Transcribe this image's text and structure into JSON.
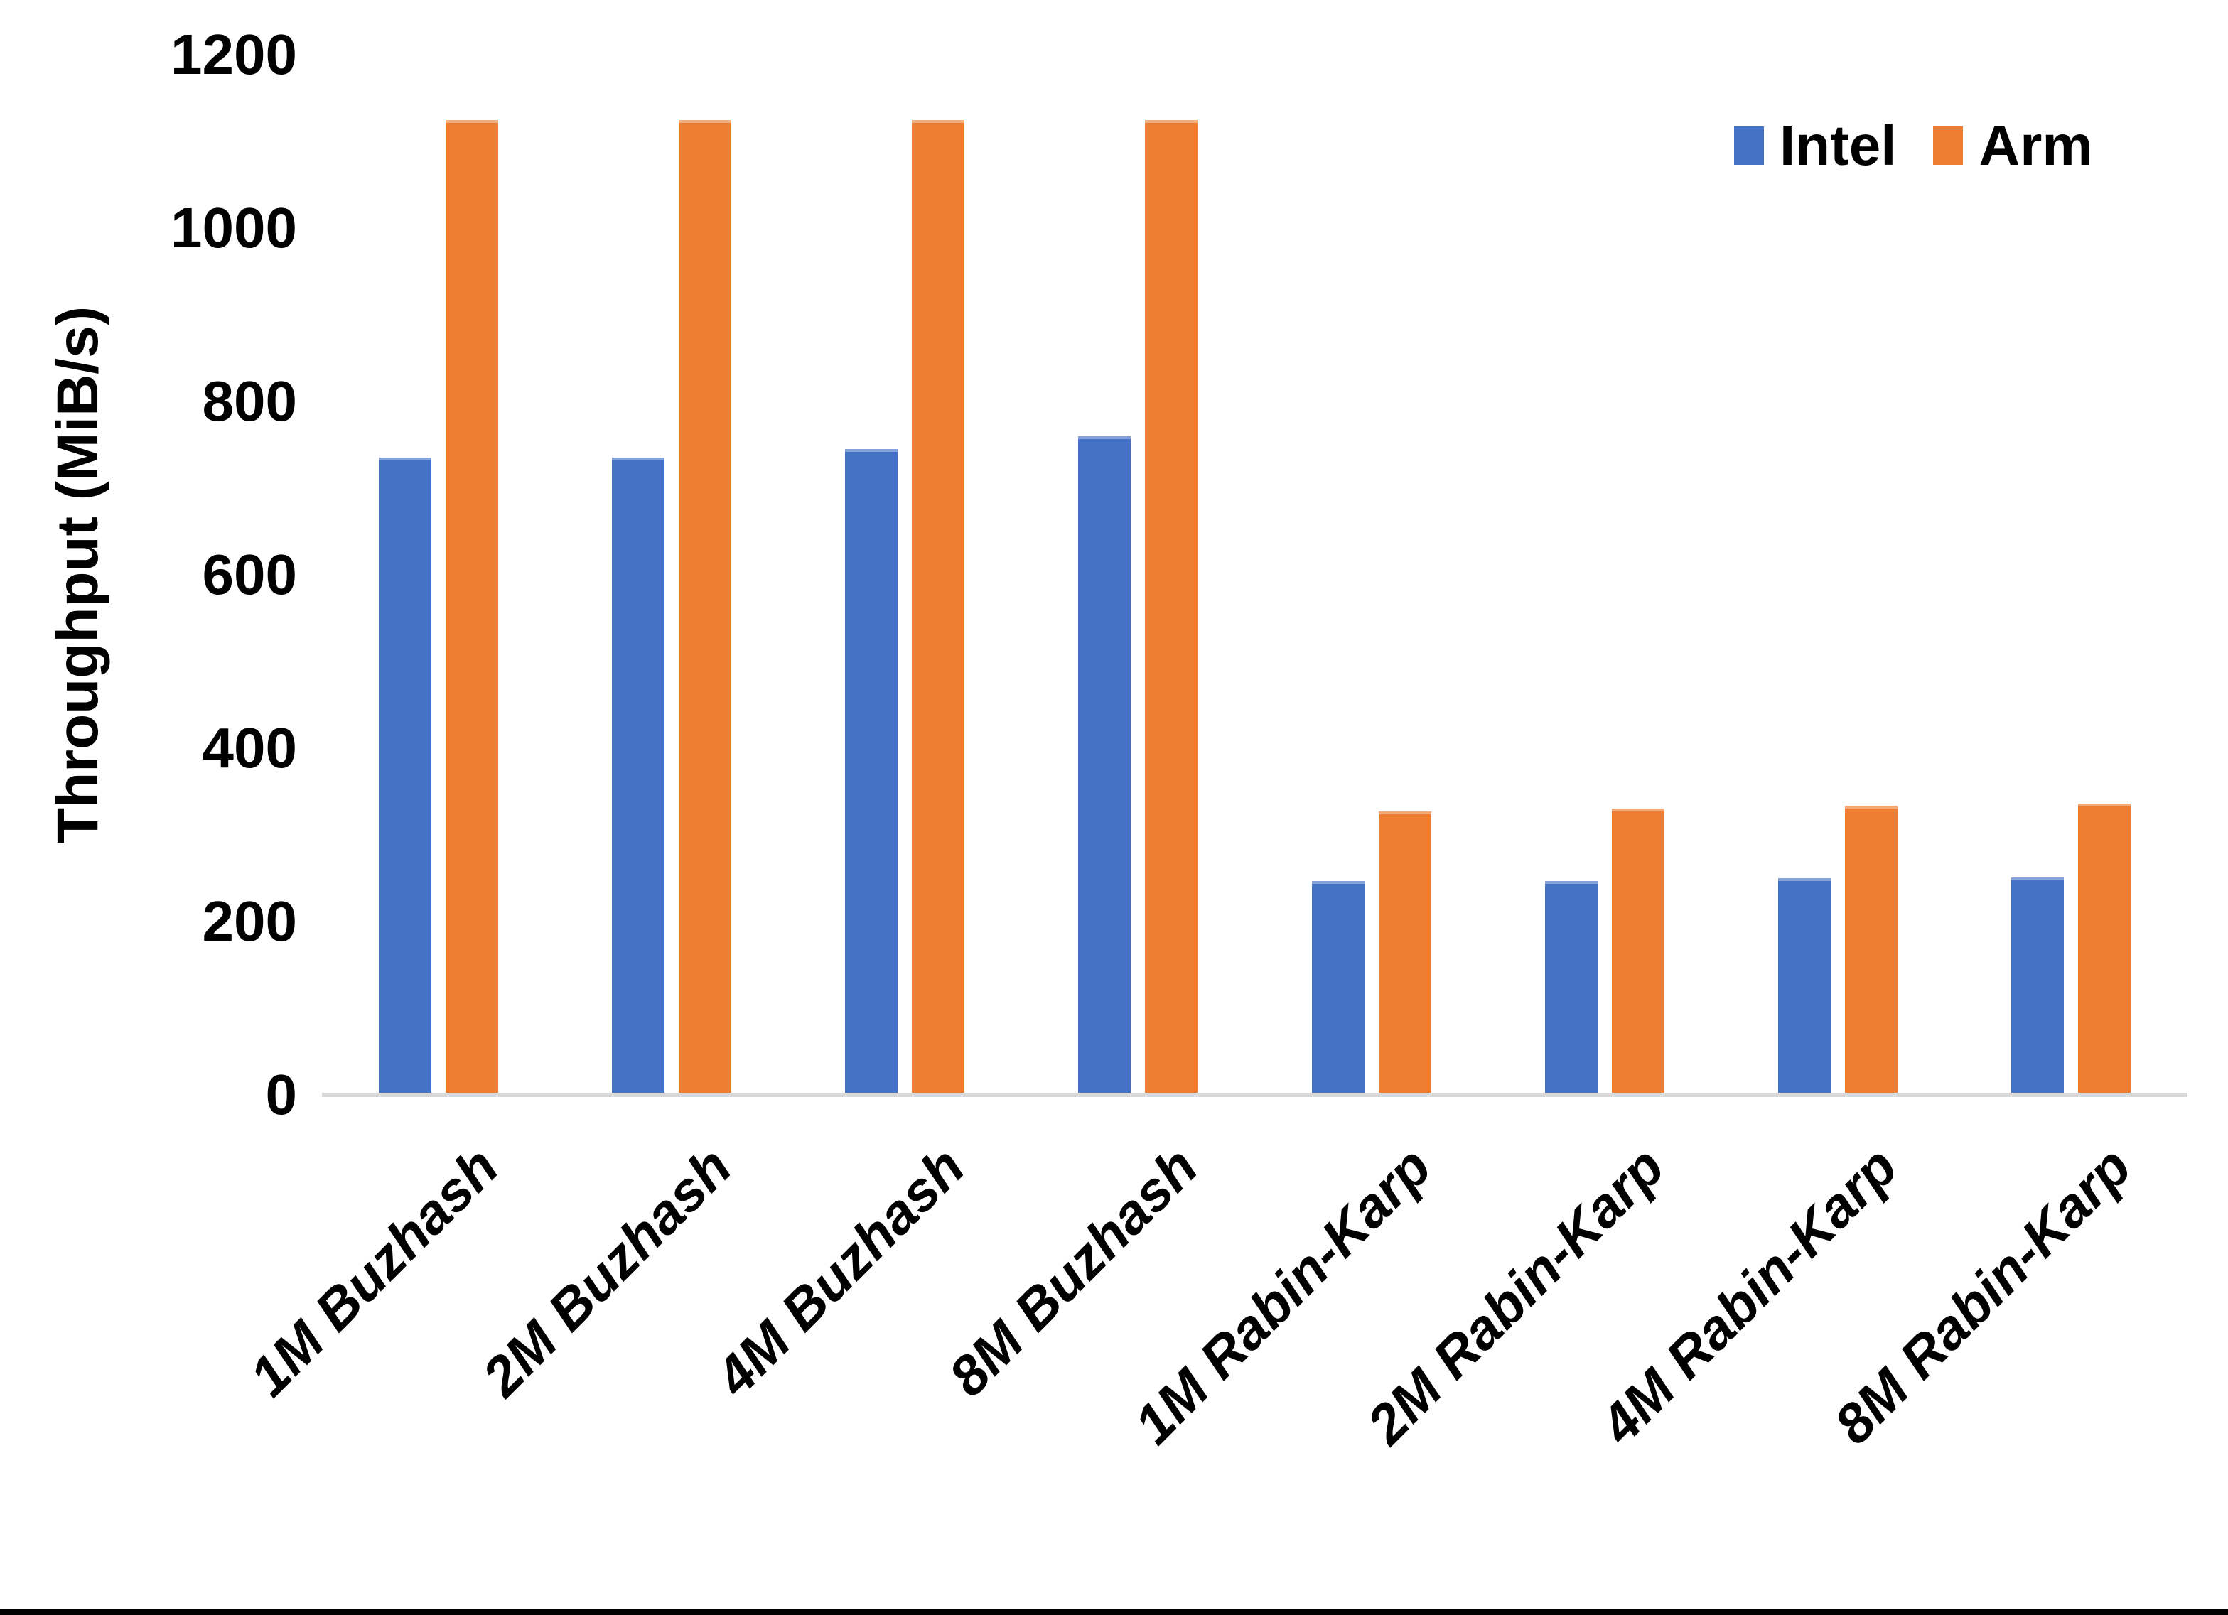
{
  "chart_data": {
    "type": "bar",
    "title": "",
    "categories": [
      "1M Buzhash",
      "2M Buzhash",
      "4M Buzhash",
      "8M Buzhash",
      "1M Rabin-Karp",
      "2M Rabin-Karp",
      "4M Rabin-Karp",
      "8M Rabin-Karp"
    ],
    "series": [
      {
        "name": "Intel",
        "color": "#4472C4",
        "values": [
          735,
          735,
          745,
          760,
          247,
          247,
          250,
          251
        ]
      },
      {
        "name": "Arm",
        "color": "#ED7D31",
        "values": [
          1125,
          1125,
          1125,
          1125,
          327,
          330,
          334,
          336
        ]
      }
    ],
    "ylabel": "Throughput (MiB/s)",
    "ylim": [
      0,
      1200
    ],
    "yticks": [
      0,
      200,
      400,
      600,
      800,
      1000,
      1200
    ],
    "legend": {
      "position": "top-right",
      "entries": [
        "Intel",
        "Arm"
      ]
    },
    "grid": false,
    "axis_line_color": "#D9D9D9",
    "text_color": "#000000"
  }
}
